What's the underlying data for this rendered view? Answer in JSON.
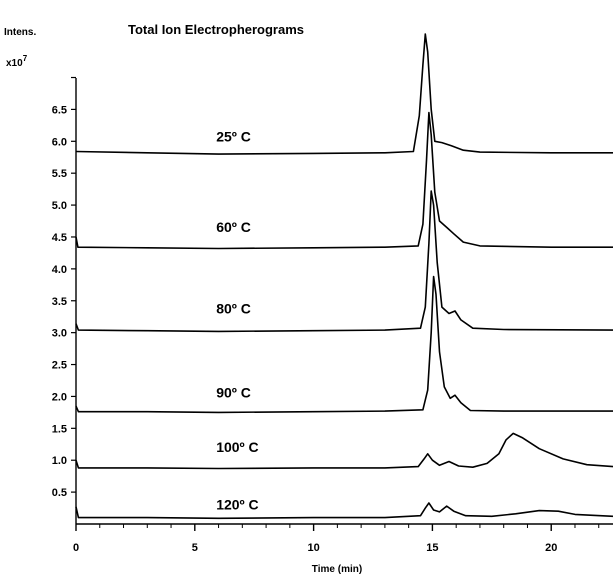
{
  "chart_data": {
    "type": "line",
    "title": "Total Ion Electropherograms",
    "ylabel": "Intens.",
    "yunit": "x10",
    "yunit_exp": "7",
    "xlabel": "Time (min)",
    "xlim": [
      0,
      22.6
    ],
    "ylim": [
      0,
      7.4
    ],
    "x_ticks": [
      0,
      5,
      10,
      15,
      20
    ],
    "x_tick_labels": [
      "0",
      "5",
      "10",
      "15",
      "20"
    ],
    "y_ticks": [
      0.5,
      1.0,
      1.5,
      2.0,
      2.5,
      3.0,
      3.5,
      4.0,
      4.5,
      5.0,
      5.5,
      6.0,
      6.5
    ],
    "y_tick_labels": [
      "0.5",
      "1.0",
      "1.5",
      "2.0",
      "2.5",
      "3.0",
      "3.5",
      "4.0",
      "4.5",
      "5.0",
      "5.5",
      "6.0",
      "6.5"
    ],
    "series": [
      {
        "name": "25º C",
        "label_x": 5.9,
        "label_y": 6.0,
        "points": [
          [
            0,
            5.84
          ],
          [
            3,
            5.82
          ],
          [
            6,
            5.8
          ],
          [
            10,
            5.81
          ],
          [
            13,
            5.82
          ],
          [
            14.2,
            5.84
          ],
          [
            14.45,
            6.4
          ],
          [
            14.6,
            7.2
          ],
          [
            14.7,
            7.68
          ],
          [
            14.8,
            7.4
          ],
          [
            14.95,
            6.5
          ],
          [
            15.1,
            6.0
          ],
          [
            15.4,
            5.98
          ],
          [
            15.8,
            5.93
          ],
          [
            16.3,
            5.86
          ],
          [
            17,
            5.83
          ],
          [
            20,
            5.82
          ],
          [
            22.6,
            5.82
          ]
        ]
      },
      {
        "name": "60º C",
        "label_x": 5.9,
        "label_y": 4.58,
        "points": [
          [
            0,
            4.5
          ],
          [
            0.08,
            4.34
          ],
          [
            3,
            4.33
          ],
          [
            6,
            4.32
          ],
          [
            10,
            4.33
          ],
          [
            13,
            4.34
          ],
          [
            14.4,
            4.36
          ],
          [
            14.6,
            4.7
          ],
          [
            14.75,
            5.7
          ],
          [
            14.85,
            6.45
          ],
          [
            14.95,
            6.1
          ],
          [
            15.1,
            5.2
          ],
          [
            15.3,
            4.75
          ],
          [
            15.6,
            4.65
          ],
          [
            15.9,
            4.55
          ],
          [
            16.3,
            4.42
          ],
          [
            17,
            4.36
          ],
          [
            20,
            4.34
          ],
          [
            22.6,
            4.34
          ]
        ]
      },
      {
        "name": "80º C",
        "label_x": 5.9,
        "label_y": 3.3,
        "points": [
          [
            0,
            3.14
          ],
          [
            0.1,
            3.04
          ],
          [
            3,
            3.03
          ],
          [
            6,
            3.02
          ],
          [
            10,
            3.03
          ],
          [
            13,
            3.04
          ],
          [
            14.5,
            3.07
          ],
          [
            14.7,
            3.4
          ],
          [
            14.85,
            4.4
          ],
          [
            14.95,
            5.22
          ],
          [
            15.05,
            5.0
          ],
          [
            15.2,
            4.1
          ],
          [
            15.4,
            3.4
          ],
          [
            15.7,
            3.3
          ],
          [
            15.95,
            3.34
          ],
          [
            16.2,
            3.2
          ],
          [
            16.7,
            3.07
          ],
          [
            18,
            3.05
          ],
          [
            22.6,
            3.04
          ]
        ]
      },
      {
        "name": "90º C",
        "label_x": 5.9,
        "label_y": 1.98,
        "points": [
          [
            0,
            1.85
          ],
          [
            0.1,
            1.76
          ],
          [
            3,
            1.76
          ],
          [
            6,
            1.75
          ],
          [
            10,
            1.76
          ],
          [
            13,
            1.77
          ],
          [
            14.6,
            1.79
          ],
          [
            14.8,
            2.1
          ],
          [
            14.95,
            3.0
          ],
          [
            15.05,
            3.88
          ],
          [
            15.15,
            3.6
          ],
          [
            15.3,
            2.7
          ],
          [
            15.5,
            2.15
          ],
          [
            15.75,
            1.97
          ],
          [
            15.95,
            2.02
          ],
          [
            16.2,
            1.9
          ],
          [
            16.6,
            1.78
          ],
          [
            18,
            1.77
          ],
          [
            22.6,
            1.77
          ]
        ]
      },
      {
        "name": "100º C",
        "label_x": 5.9,
        "label_y": 1.13,
        "points": [
          [
            0,
            1.0
          ],
          [
            0.1,
            0.88
          ],
          [
            3,
            0.88
          ],
          [
            6,
            0.87
          ],
          [
            10,
            0.88
          ],
          [
            13,
            0.88
          ],
          [
            14.4,
            0.9
          ],
          [
            14.65,
            1.02
          ],
          [
            14.8,
            1.1
          ],
          [
            15,
            1.0
          ],
          [
            15.3,
            0.92
          ],
          [
            15.7,
            0.98
          ],
          [
            16.1,
            0.91
          ],
          [
            16.7,
            0.89
          ],
          [
            17.3,
            0.95
          ],
          [
            17.8,
            1.1
          ],
          [
            18.1,
            1.32
          ],
          [
            18.4,
            1.42
          ],
          [
            18.8,
            1.35
          ],
          [
            19.5,
            1.18
          ],
          [
            20.5,
            1.02
          ],
          [
            21.5,
            0.93
          ],
          [
            22.6,
            0.9
          ]
        ]
      },
      {
        "name": "120º C",
        "label_x": 5.9,
        "label_y": 0.23,
        "points": [
          [
            0,
            0.27
          ],
          [
            0.1,
            0.1
          ],
          [
            3,
            0.1
          ],
          [
            6,
            0.09
          ],
          [
            10,
            0.1
          ],
          [
            13,
            0.1
          ],
          [
            14.5,
            0.13
          ],
          [
            14.7,
            0.25
          ],
          [
            14.85,
            0.33
          ],
          [
            15.05,
            0.22
          ],
          [
            15.3,
            0.19
          ],
          [
            15.6,
            0.28
          ],
          [
            15.9,
            0.2
          ],
          [
            16.4,
            0.13
          ],
          [
            17.5,
            0.12
          ],
          [
            18.5,
            0.16
          ],
          [
            19.5,
            0.21
          ],
          [
            20.3,
            0.2
          ],
          [
            21,
            0.15
          ],
          [
            22.6,
            0.12
          ]
        ]
      }
    ]
  }
}
